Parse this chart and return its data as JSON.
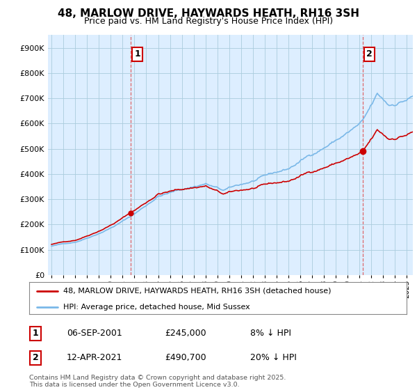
{
  "title": "48, MARLOW DRIVE, HAYWARDS HEATH, RH16 3SH",
  "subtitle": "Price paid vs. HM Land Registry's House Price Index (HPI)",
  "legend_line1": "48, MARLOW DRIVE, HAYWARDS HEATH, RH16 3SH (detached house)",
  "legend_line2": "HPI: Average price, detached house, Mid Sussex",
  "annotation1_label": "1",
  "annotation1_date": "06-SEP-2001",
  "annotation1_price": "£245,000",
  "annotation1_hpi": "8% ↓ HPI",
  "annotation2_label": "2",
  "annotation2_date": "12-APR-2021",
  "annotation2_price": "£490,700",
  "annotation2_hpi": "20% ↓ HPI",
  "footer": "Contains HM Land Registry data © Crown copyright and database right 2025.\nThis data is licensed under the Open Government Licence v3.0.",
  "line_color_red": "#cc0000",
  "line_color_blue": "#7ab8e8",
  "chart_bg_color": "#ddeeff",
  "background_color": "#ffffff",
  "grid_color": "#aaccdd",
  "ylim_max": 950000,
  "sale1_year": 2001.68,
  "sale1_price": 245000,
  "sale2_year": 2021.28,
  "sale2_price": 490700
}
